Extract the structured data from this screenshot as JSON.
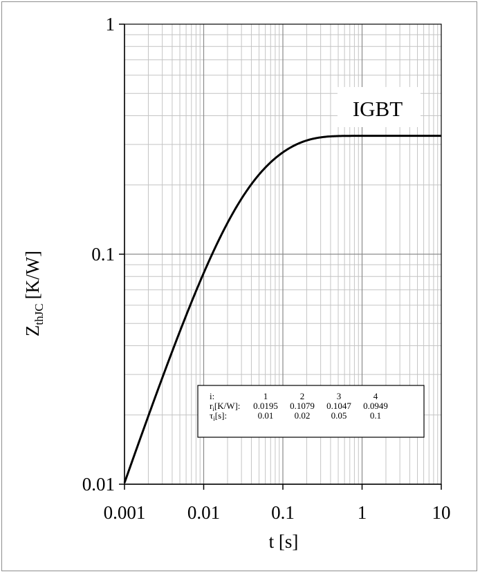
{
  "chart_data": {
    "type": "line",
    "x_scale": "log",
    "y_scale": "log",
    "xlim": [
      0.001,
      10
    ],
    "ylim": [
      0.01,
      1
    ],
    "grid": true,
    "xlabel": "t [s]",
    "ylabel": {
      "main": "Z",
      "sub": "thJC",
      "unit": "[K/W]"
    },
    "x_ticks": [
      "0.001",
      "0.01",
      "0.1",
      "1",
      "10"
    ],
    "x_tick_values": [
      0.001,
      0.01,
      0.1,
      1,
      10
    ],
    "y_ticks": [
      "0.01",
      "0.1",
      "1"
    ],
    "y_tick_values": [
      0.01,
      0.1,
      1
    ],
    "series": [
      {
        "name": "IGBT",
        "model": "foster",
        "r_i": [
          0.0195,
          0.1079,
          0.1047,
          0.0949
        ],
        "tau_i": [
          0.01,
          0.02,
          0.05,
          0.1
        ],
        "color": "#000000"
      }
    ],
    "annotations": {
      "curve_label": "IGBT",
      "param_table": {
        "rows": [
          {
            "label_main": "i:",
            "label_sub": "",
            "label_tail": "",
            "values": [
              "1",
              "2",
              "3",
              "4"
            ]
          },
          {
            "label_main": "r",
            "label_sub": "i",
            "label_tail": "[K/W]:",
            "values": [
              "0.0195",
              "0.1079",
              "0.1047",
              "0.0949"
            ]
          },
          {
            "label_main": "τ",
            "label_sub": "i",
            "label_tail": "[s]:",
            "values": [
              "0.01",
              "0.02",
              "0.05",
              "0.1"
            ]
          }
        ]
      }
    }
  }
}
